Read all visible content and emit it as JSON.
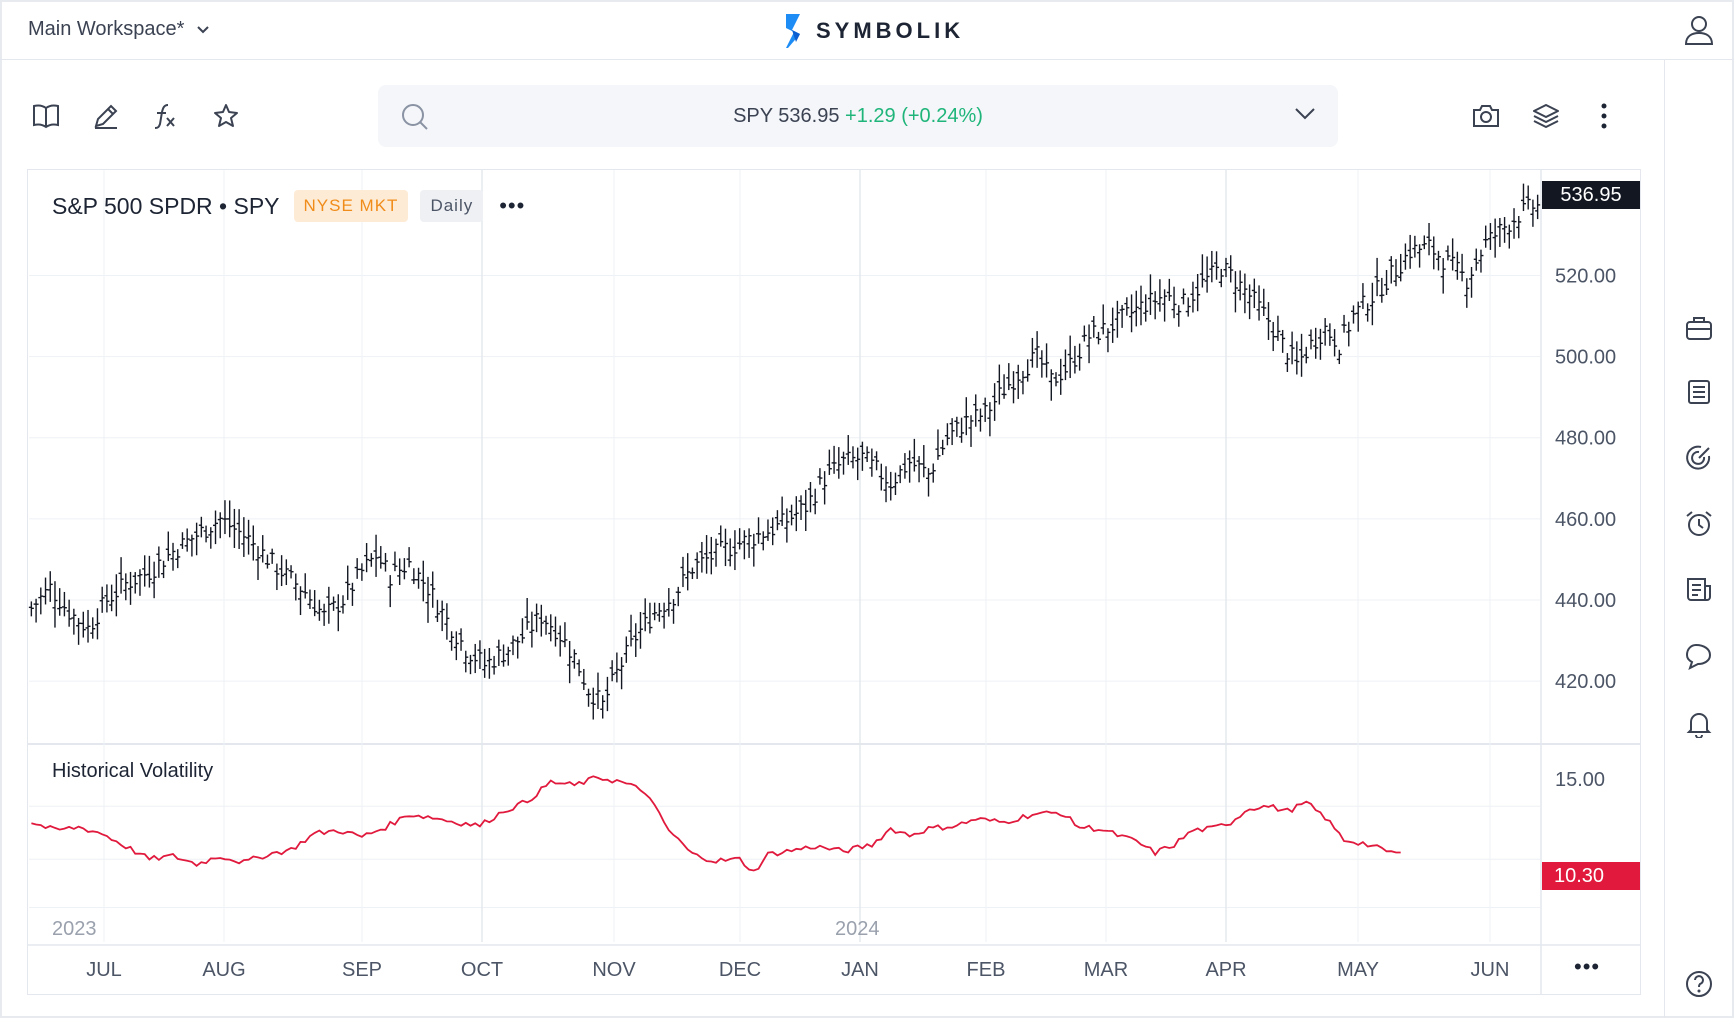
{
  "header": {
    "workspace": "Main Workspace*",
    "logo_text": "SYMBOLIK"
  },
  "search": {
    "symbol": "SPY",
    "price": "536.95",
    "change": "+1.29",
    "change_pct": "(+0.24%)"
  },
  "chart_header": {
    "name": "S&P 500 SPDR • SPY",
    "exchange": "NYSE MKT",
    "interval": "Daily",
    "more": "•••"
  },
  "price_tag": "536.95",
  "vol_tag": "10.30",
  "volatility_label": "Historical Volatility",
  "year_labels": [
    "2023",
    "2024"
  ],
  "axis_more": "•••",
  "colors": {
    "up": "#1fb57a",
    "exchange": "#f08c1a",
    "vol_line": "#e0193d",
    "bars": "#131722",
    "grid": "#eef1f5"
  },
  "icons": {
    "toolbar": [
      "book-icon",
      "pencil-icon",
      "function-icon",
      "star-icon"
    ],
    "right_tools": [
      "camera-icon",
      "layers-icon",
      "kebab-icon"
    ],
    "sidebar": [
      "briefcase-icon",
      "list-icon",
      "target-icon",
      "alarm-icon",
      "news-icon",
      "chat-icon",
      "bell-icon",
      "help-icon"
    ]
  },
  "chart_data": [
    {
      "type": "ohlc",
      "x_ticks": [
        "JUL",
        "AUG",
        "SEP",
        "OCT",
        "NOV",
        "DEC",
        "JAN",
        "FEB",
        "MAR",
        "APR",
        "MAY",
        "JUN"
      ],
      "y_ticks": [
        "520.00",
        "500.00",
        "480.00",
        "460.00",
        "440.00",
        "420.00"
      ],
      "ylim": [
        405,
        546
      ],
      "anchors": [
        [
          0,
          438
        ],
        [
          4,
          443
        ],
        [
          8,
          437
        ],
        [
          12,
          433
        ],
        [
          16,
          440
        ],
        [
          20,
          444
        ],
        [
          25,
          447
        ],
        [
          30,
          452
        ],
        [
          35,
          456
        ],
        [
          40,
          460
        ],
        [
          46,
          455
        ],
        [
          52,
          448
        ],
        [
          58,
          442
        ],
        [
          62,
          436
        ],
        [
          66,
          440
        ],
        [
          70,
          447
        ],
        [
          73,
          451
        ],
        [
          76,
          446
        ],
        [
          80,
          449
        ],
        [
          84,
          443
        ],
        [
          88,
          435
        ],
        [
          92,
          428
        ],
        [
          96,
          424
        ],
        [
          100,
          427
        ],
        [
          104,
          431
        ],
        [
          108,
          436
        ],
        [
          111,
          433
        ],
        [
          115,
          426
        ],
        [
          118,
          418
        ],
        [
          121,
          414
        ],
        [
          124,
          422
        ],
        [
          128,
          431
        ],
        [
          132,
          437
        ],
        [
          136,
          441
        ],
        [
          140,
          448
        ],
        [
          146,
          452
        ],
        [
          152,
          455
        ],
        [
          158,
          458
        ],
        [
          164,
          463
        ],
        [
          168,
          470
        ],
        [
          172,
          474
        ],
        [
          176,
          475
        ],
        [
          178,
          473
        ],
        [
          182,
          469
        ],
        [
          186,
          474
        ],
        [
          190,
          471
        ],
        [
          194,
          480
        ],
        [
          198,
          484
        ],
        [
          202,
          486
        ],
        [
          206,
          492
        ],
        [
          210,
          497
        ],
        [
          213,
          500
        ],
        [
          216,
          494
        ],
        [
          220,
          498
        ],
        [
          224,
          505
        ],
        [
          228,
          507
        ],
        [
          232,
          510
        ],
        [
          236,
          513
        ],
        [
          240,
          515
        ],
        [
          244,
          513
        ],
        [
          248,
          518
        ],
        [
          252,
          522
        ],
        [
          254,
          520
        ],
        [
          258,
          515
        ],
        [
          262,
          509
        ],
        [
          265,
          503
        ],
        [
          268,
          498
        ],
        [
          271,
          503
        ],
        [
          274,
          507
        ],
        [
          277,
          503
        ],
        [
          280,
          510
        ],
        [
          284,
          515
        ],
        [
          288,
          520
        ],
        [
          292,
          526
        ],
        [
          296,
          527
        ],
        [
          300,
          523
        ],
        [
          304,
          519
        ],
        [
          308,
          528
        ],
        [
          312,
          532
        ],
        [
          315,
          535
        ],
        [
          318,
          537
        ]
      ]
    },
    {
      "type": "line",
      "name": "Historical Volatility",
      "y_ticks": [
        "15.00"
      ],
      "ylim": [
        4.85,
        16.8
      ],
      "anchors": [
        [
          0,
          12.3
        ],
        [
          5,
          11.8
        ],
        [
          10,
          12.0
        ],
        [
          15,
          11.6
        ],
        [
          20,
          10.8
        ],
        [
          25,
          10.0
        ],
        [
          30,
          10.2
        ],
        [
          35,
          9.7
        ],
        [
          40,
          10.2
        ],
        [
          45,
          9.8
        ],
        [
          50,
          10.3
        ],
        [
          55,
          10.6
        ],
        [
          60,
          11.6
        ],
        [
          65,
          11.8
        ],
        [
          70,
          11.4
        ],
        [
          75,
          12.0
        ],
        [
          80,
          12.8
        ],
        [
          85,
          12.6
        ],
        [
          90,
          12.3
        ],
        [
          95,
          12.1
        ],
        [
          100,
          13.0
        ],
        [
          105,
          13.6
        ],
        [
          110,
          14.8
        ],
        [
          115,
          14.6
        ],
        [
          120,
          15.1
        ],
        [
          125,
          14.8
        ],
        [
          130,
          14.2
        ],
        [
          135,
          11.8
        ],
        [
          140,
          10.3
        ],
        [
          145,
          9.9
        ],
        [
          150,
          10.0
        ],
        [
          153,
          9.2
        ],
        [
          156,
          10.3
        ],
        [
          160,
          10.5
        ],
        [
          166,
          10.8
        ],
        [
          172,
          10.5
        ],
        [
          178,
          10.9
        ],
        [
          182,
          11.9
        ],
        [
          186,
          11.5
        ],
        [
          190,
          11.9
        ],
        [
          196,
          12.1
        ],
        [
          200,
          12.5
        ],
        [
          206,
          12.3
        ],
        [
          212,
          12.8
        ],
        [
          218,
          12.9
        ],
        [
          222,
          12.0
        ],
        [
          226,
          11.9
        ],
        [
          230,
          11.5
        ],
        [
          234,
          11.1
        ],
        [
          238,
          10.4
        ],
        [
          242,
          10.9
        ],
        [
          246,
          11.8
        ],
        [
          250,
          11.9
        ],
        [
          254,
          12.3
        ],
        [
          258,
          13.2
        ],
        [
          262,
          13.3
        ],
        [
          266,
          13.0
        ],
        [
          270,
          13.5
        ],
        [
          274,
          12.6
        ],
        [
          278,
          11.2
        ],
        [
          282,
          11.0
        ],
        [
          286,
          10.6
        ],
        [
          290,
          10.3
        ]
      ]
    }
  ]
}
